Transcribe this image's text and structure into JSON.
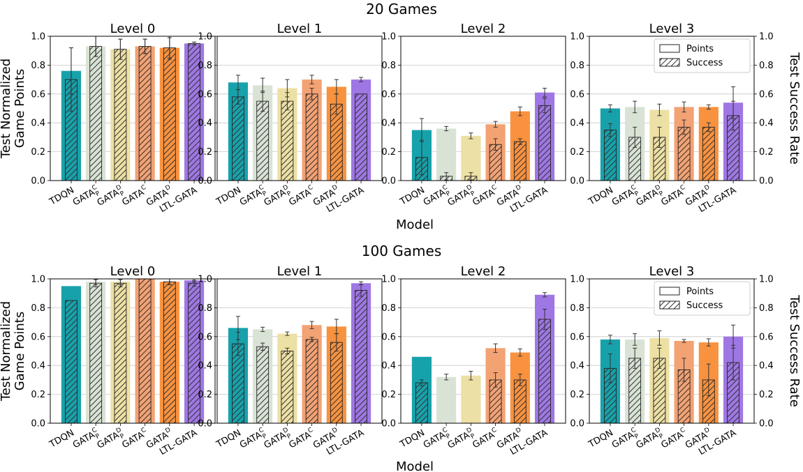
{
  "chart_data": {
    "type": "bar",
    "y_tick_labels": [
      "0.0",
      "0.2",
      "0.4",
      "0.6",
      "0.8",
      "1.0"
    ],
    "ylim": [
      0,
      1
    ],
    "grid": "horizontal",
    "left_ylabel": [
      "Test Normalized",
      "Game Points"
    ],
    "right_ylabel": "Test Success Rate",
    "xlabel": "Model",
    "legend": {
      "position": "top-right",
      "entries": [
        "Points",
        "Success"
      ]
    },
    "models": [
      {
        "base": "TDQN",
        "sub": "",
        "sup": "",
        "color": "#17a2ab"
      },
      {
        "base": "GATA",
        "sub": "P",
        "sup": "C",
        "color": "#d9e3d5"
      },
      {
        "base": "GATA",
        "sub": "P",
        "sup": "D",
        "color": "#ede0a4"
      },
      {
        "base": "GATA",
        "sub": "",
        "sup": "C",
        "color": "#f3a273"
      },
      {
        "base": "GATA",
        "sub": "",
        "sup": "D",
        "color": "#f9923f"
      },
      {
        "base": "LTL-GATA",
        "sub": "",
        "sup": "",
        "color": "#9f77e4"
      }
    ],
    "rows": [
      {
        "title": "20 Games",
        "panels": [
          {
            "title": "Level 0",
            "points": [
              0.76,
              0.93,
              0.91,
              0.93,
              0.92,
              0.95
            ],
            "points_err": [
              0.16,
              0.07,
              0.07,
              0.05,
              0.07,
              0.01
            ],
            "success": [
              0.7,
              0.93,
              0.91,
              0.93,
              0.92,
              0.95
            ],
            "success_err": [
              0.22,
              0.07,
              0.07,
              0.05,
              0.08,
              0.0
            ]
          },
          {
            "title": "Level 1",
            "points": [
              0.68,
              0.66,
              0.64,
              0.7,
              0.65,
              0.7
            ],
            "points_err": [
              0.05,
              0.05,
              0.06,
              0.03,
              0.05,
              0.015
            ],
            "success": [
              0.58,
              0.55,
              0.55,
              0.6,
              0.53,
              0.6
            ],
            "success_err": [
              0.05,
              0.07,
              0.06,
              0.04,
              0.07,
              0.0
            ]
          },
          {
            "title": "Level 2",
            "points": [
              0.35,
              0.36,
              0.31,
              0.39,
              0.48,
              0.61
            ],
            "points_err": [
              0.08,
              0.015,
              0.02,
              0.02,
              0.03,
              0.03
            ],
            "success": [
              0.16,
              0.03,
              0.03,
              0.25,
              0.27,
              0.52
            ],
            "success_err": [
              0.12,
              0.025,
              0.025,
              0.04,
              0.02,
              0.05
            ]
          },
          {
            "title": "Level 3",
            "points": [
              0.5,
              0.51,
              0.49,
              0.51,
              0.51,
              0.54
            ],
            "points_err": [
              0.025,
              0.04,
              0.04,
              0.035,
              0.015,
              0.11
            ],
            "success": [
              0.35,
              0.3,
              0.3,
              0.37,
              0.37,
              0.45
            ],
            "success_err": [
              0.045,
              0.07,
              0.07,
              0.05,
              0.03,
              0.1
            ]
          }
        ]
      },
      {
        "title": "100 Games",
        "panels": [
          {
            "title": "Level 0",
            "points": [
              0.95,
              0.98,
              0.98,
              1.0,
              0.98,
              0.99
            ],
            "points_err": [
              0.0,
              0.02,
              0.02,
              0.0,
              0.02,
              0.01
            ],
            "success": [
              0.85,
              0.97,
              0.97,
              1.0,
              0.98,
              0.97
            ],
            "success_err": [
              0.0,
              0.025,
              0.025,
              0.0,
              0.02,
              0.02
            ]
          },
          {
            "title": "Level 1",
            "points": [
              0.66,
              0.65,
              0.62,
              0.68,
              0.67,
              0.97
            ],
            "points_err": [
              0.08,
              0.015,
              0.012,
              0.025,
              0.05,
              0.01
            ],
            "success": [
              0.55,
              0.53,
              0.5,
              0.58,
              0.56,
              0.92
            ],
            "success_err": [
              0.08,
              0.025,
              0.02,
              0.015,
              0.06,
              0.04
            ]
          },
          {
            "title": "Level 2",
            "points": [
              0.46,
              0.32,
              0.33,
              0.52,
              0.49,
              0.89
            ],
            "points_err": [
              0.0,
              0.02,
              0.03,
              0.03,
              0.025,
              0.015
            ],
            "success": [
              0.28,
              0.0,
              0.0,
              0.3,
              0.3,
              0.72
            ],
            "success_err": [
              0.02,
              0.0,
              0.0,
              0.05,
              0.04,
              0.07
            ]
          },
          {
            "title": "Level 3",
            "points": [
              0.58,
              0.58,
              0.59,
              0.57,
              0.56,
              0.6
            ],
            "points_err": [
              0.03,
              0.04,
              0.05,
              0.01,
              0.025,
              0.08
            ],
            "success": [
              0.38,
              0.45,
              0.45,
              0.37,
              0.3,
              0.42
            ],
            "success_err": [
              0.1,
              0.07,
              0.07,
              0.08,
              0.11,
              0.12
            ]
          }
        ]
      }
    ]
  }
}
